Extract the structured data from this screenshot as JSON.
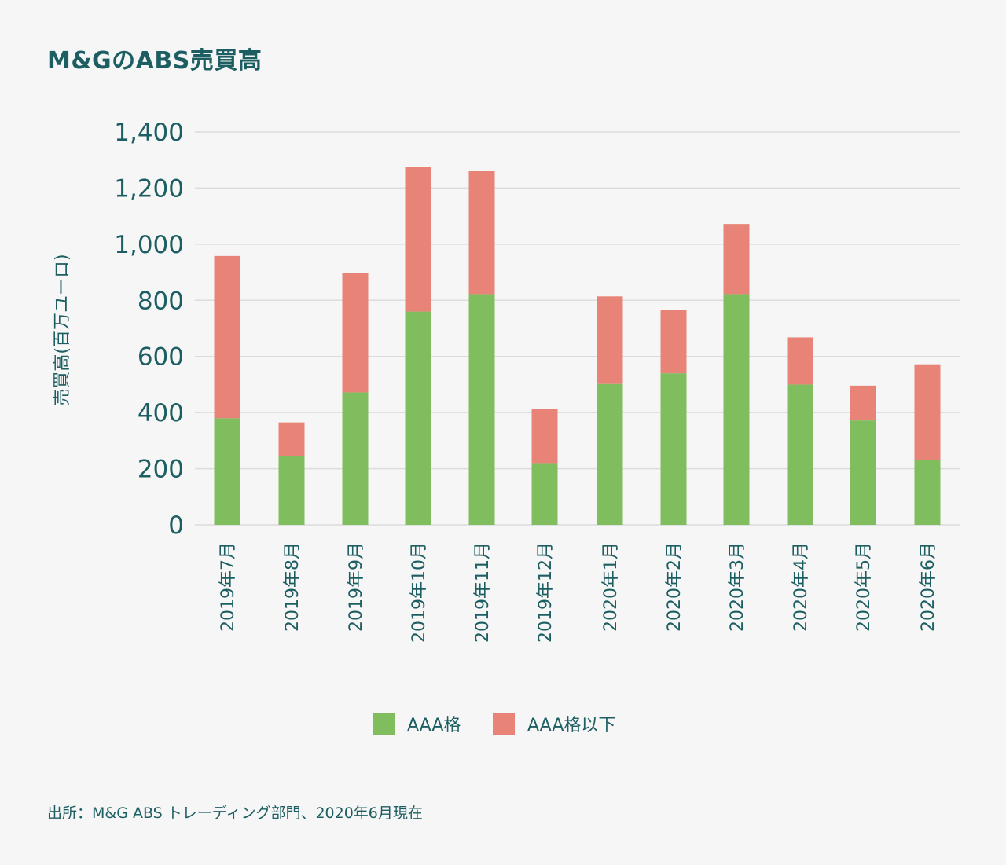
{
  "chart_data": {
    "type": "bar",
    "stacked": true,
    "title": "M&GのABS売買高",
    "ylabel": "売買高(百万ユーロ)",
    "xlabel": "",
    "ylim": [
      0,
      1400
    ],
    "yticks": [
      0,
      200,
      400,
      600,
      800,
      1000,
      1200,
      1400
    ],
    "ytick_labels": [
      "0",
      "200",
      "400",
      "600",
      "800",
      "1,000",
      "1,200",
      "1,400"
    ],
    "grid": true,
    "legend_position": "bottom",
    "categories": [
      "2019年7月",
      "2019年8月",
      "2019年9月",
      "2019年10月",
      "2019年11月",
      "2019年12月",
      "2020年1月",
      "2020年2月",
      "2020年3月",
      "2020年4月",
      "2020年5月",
      "2020年6月"
    ],
    "series": [
      {
        "name": "AAA格",
        "color": "#7fbd5e",
        "values": [
          380,
          245,
          472,
          760,
          822,
          220,
          502,
          540,
          822,
          500,
          372,
          230
        ]
      },
      {
        "name": "AAA格以下",
        "color": "#e88377",
        "values": [
          578,
          120,
          425,
          515,
          438,
          192,
          312,
          227,
          250,
          168,
          124,
          342
        ]
      }
    ]
  },
  "footer": {
    "source": "出所：M&G ABS トレーディング部門、2020年6月現在"
  },
  "colors": {
    "text": "#1d5e62",
    "grid": "#dcdcdc",
    "background": "#f6f6f6"
  }
}
